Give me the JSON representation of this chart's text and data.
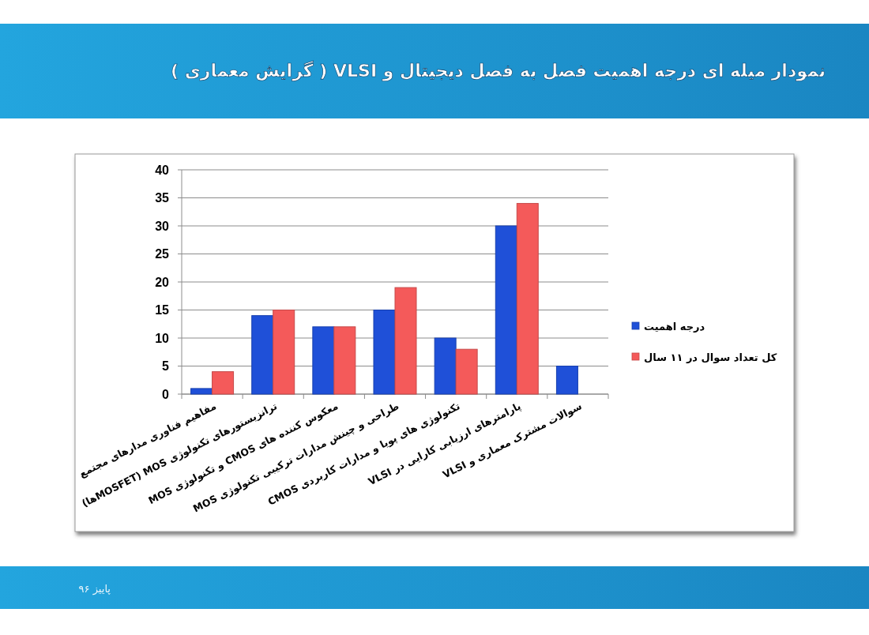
{
  "chart_data": {
    "type": "bar",
    "title": "نمودار میله ای درجه اهمیت فصل به فصل دیجیتال و VLSI ( گرایش معماری )",
    "categories": [
      "مفاهیم فناوری مدارهای مجتمع",
      "ترانزیستورهای تکنولوژی MOS (MOSFETها)",
      "معکوس کننده های CMOS و تکنولوژی MOS",
      "طراحی و چینش مدارات ترکیبی تکنولوژی MOS",
      "تکنولوژی های پویا و مدارات کاربردی CMOS",
      "پارامترهای ارزیابی کارایی در VLSI",
      "سوالات مشترک معماری و VLSI"
    ],
    "series": [
      {
        "name": "درجه اهمیت",
        "color": "#1f50d8",
        "values": [
          1,
          14,
          12,
          15,
          10,
          30,
          5
        ]
      },
      {
        "name": "کل تعداد سوال در ۱۱ سال",
        "color": "#f45a5a",
        "values": [
          4,
          15,
          12,
          19,
          8,
          34,
          0
        ]
      }
    ],
    "ylim": [
      0,
      40
    ],
    "yticks": [
      0,
      5,
      10,
      15,
      20,
      25,
      30,
      35,
      40
    ],
    "grid": "y",
    "legend": "right",
    "annotations": [
      "پاییز ۹۶"
    ]
  }
}
